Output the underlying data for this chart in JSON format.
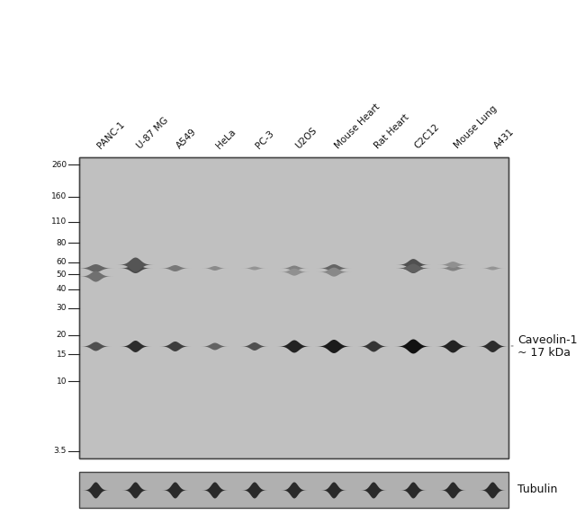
{
  "lane_labels": [
    "PANC-1",
    "U-87 MG",
    "A549",
    "HeLa",
    "PC-3",
    "U2OS",
    "Mouse Heart",
    "Rat Heart",
    "C2C12",
    "Mouse Lung",
    "A431"
  ],
  "mw_markers": [
    260,
    160,
    110,
    80,
    60,
    50,
    40,
    30,
    20,
    15,
    10,
    3.5
  ],
  "caveolin_label": "Caveolin-1\n~ 17 kDa",
  "tubulin_label": "Tubulin",
  "bg_color": "#c8c8c8",
  "blot_bg": "#b8b8b8",
  "band_dark": "#1a1a1a",
  "band_medium": "#404040",
  "band_light": "#707070",
  "white_bg": "#ffffff"
}
